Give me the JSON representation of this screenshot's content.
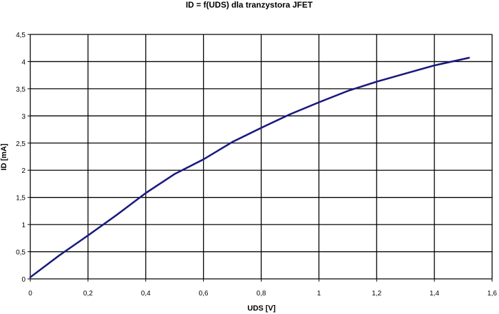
{
  "chart_data": {
    "type": "line",
    "title": "ID = f(UDS) dla tranzystora JFET",
    "xlabel": "UDS [V]",
    "ylabel": "ID [mA]",
    "xlim": [
      0,
      1.6
    ],
    "ylim": [
      0,
      4.5
    ],
    "x_ticks": [
      "0",
      "0,2",
      "0,4",
      "0,6",
      "0,8",
      "1",
      "1,2",
      "1,4",
      "1,6"
    ],
    "y_ticks": [
      "0",
      "0,5",
      "1",
      "1,5",
      "2",
      "2,5",
      "3",
      "3,5",
      "4",
      "4,5"
    ],
    "grid": true,
    "legend": "none",
    "series": [
      {
        "color": "#1a1a80",
        "x": [
          0,
          0.1,
          0.2,
          0.3,
          0.4,
          0.5,
          0.6,
          0.7,
          0.8,
          0.9,
          1.0,
          1.1,
          1.2,
          1.3,
          1.4,
          1.52
        ],
        "y": [
          0.03,
          0.43,
          0.8,
          1.18,
          1.58,
          1.93,
          2.2,
          2.52,
          2.78,
          3.03,
          3.25,
          3.46,
          3.63,
          3.78,
          3.93,
          4.07
        ]
      }
    ]
  }
}
